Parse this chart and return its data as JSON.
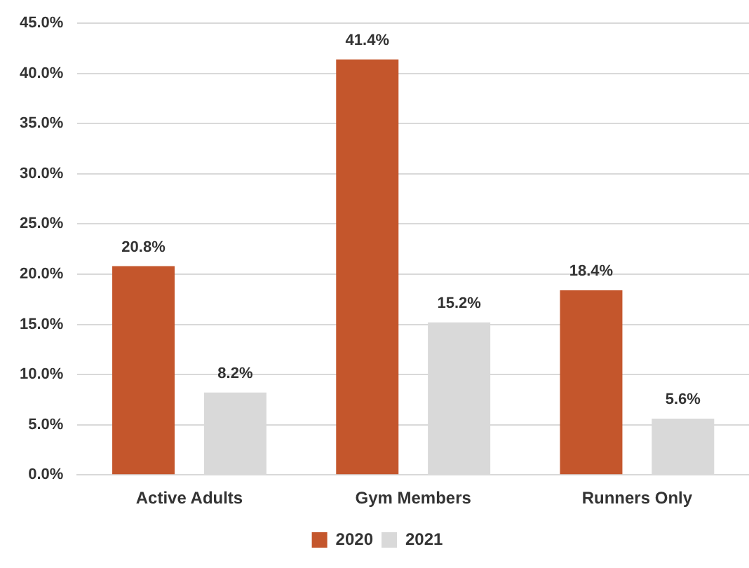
{
  "chart_data": {
    "type": "bar",
    "categories": [
      "Active Adults",
      "Gym Members",
      "Runners Only"
    ],
    "series": [
      {
        "name": "2020",
        "color": "#c4562c",
        "values": [
          20.8,
          41.4,
          18.4
        ],
        "value_labels": [
          "20.8%",
          "41.4%",
          "18.4%"
        ]
      },
      {
        "name": "2021",
        "color": "#d9d9d9",
        "values": [
          8.2,
          15.2,
          5.6
        ],
        "value_labels": [
          "8.2%",
          "15.2%",
          "5.6%"
        ]
      }
    ],
    "ylim": [
      0,
      45
    ],
    "yticks": [
      {
        "value": 0,
        "label": "0.0%"
      },
      {
        "value": 5,
        "label": "5.0%"
      },
      {
        "value": 10,
        "label": "10.0%"
      },
      {
        "value": 15,
        "label": "15.0%"
      },
      {
        "value": 20,
        "label": "20.0%"
      },
      {
        "value": 25,
        "label": "25.0%"
      },
      {
        "value": 30,
        "label": "30.0%"
      },
      {
        "value": 35,
        "label": "35.0%"
      },
      {
        "value": 40,
        "label": "40.0%"
      },
      {
        "value": 45,
        "label": "45.0%"
      }
    ],
    "grid": "y",
    "legend": "bottom"
  }
}
